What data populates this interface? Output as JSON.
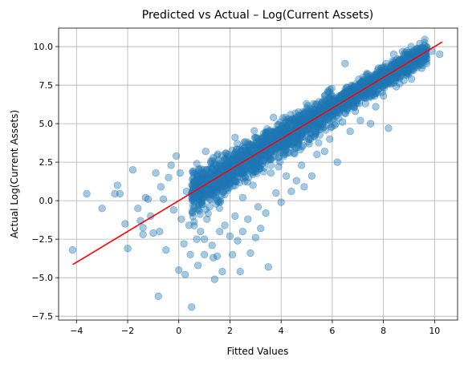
{
  "chart_data": {
    "type": "scatter",
    "title": "Predicted vs Actual – Log(Current Assets)",
    "xlabel": "Fitted Values",
    "ylabel": "Actual Log(Current Assets)",
    "xlim": [
      -4.7,
      10.9
    ],
    "ylim": [
      -7.75,
      11.2
    ],
    "x_ticks": [
      -4,
      -2,
      0,
      2,
      4,
      6,
      8,
      10
    ],
    "y_ticks": [
      -7.5,
      -5.0,
      -2.5,
      0.0,
      2.5,
      5.0,
      7.5,
      10.0
    ],
    "x_tick_labels": [
      "−4",
      "−2",
      "0",
      "2",
      "4",
      "6",
      "8",
      "10"
    ],
    "y_tick_labels": [
      "−7.5",
      "−5.0",
      "−2.5",
      "0.0",
      "2.5",
      "5.0",
      "7.5",
      "10.0"
    ],
    "grid": true,
    "point_color": "#1f77b4",
    "point_alpha": 0.4,
    "fit_line": {
      "color": "#ff0000",
      "x": [
        -4.15,
        10.3
      ],
      "y": [
        -4.15,
        10.3
      ]
    },
    "series": [
      {
        "points": [
          [
            -4.15,
            -3.2
          ],
          [
            -3.6,
            0.45
          ],
          [
            -3.0,
            -0.5
          ],
          [
            -2.5,
            0.45
          ],
          [
            -2.4,
            1.0
          ],
          [
            -2.3,
            0.45
          ],
          [
            -2.1,
            -1.5
          ],
          [
            -2.0,
            -3.1
          ],
          [
            -1.8,
            2.0
          ],
          [
            -1.6,
            -0.5
          ],
          [
            -1.5,
            -1.3
          ],
          [
            -1.4,
            -1.75
          ],
          [
            -1.4,
            -2.2
          ],
          [
            -1.3,
            0.2
          ],
          [
            -1.2,
            0.1
          ],
          [
            -1.1,
            -1.0
          ],
          [
            -1.0,
            -2.1
          ],
          [
            -0.9,
            1.8
          ],
          [
            -0.8,
            -6.2
          ],
          [
            -0.75,
            -2.0
          ],
          [
            -0.7,
            0.9
          ],
          [
            -0.6,
            0.1
          ],
          [
            -0.5,
            -3.2
          ],
          [
            -0.4,
            1.5
          ],
          [
            -0.3,
            2.3
          ],
          [
            -0.2,
            -0.6
          ],
          [
            -0.1,
            2.9
          ],
          [
            0.0,
            -4.5
          ],
          [
            0.05,
            1.8
          ],
          [
            0.1,
            -1.2
          ],
          [
            0.2,
            -2.8
          ],
          [
            0.25,
            -4.8
          ],
          [
            0.3,
            0.6
          ],
          [
            0.4,
            -1.6
          ],
          [
            0.45,
            -3.5
          ],
          [
            0.5,
            -6.9
          ],
          [
            0.55,
            1.0
          ],
          [
            0.6,
            -0.5
          ],
          [
            0.7,
            -2.5
          ],
          [
            0.75,
            -4.2
          ],
          [
            0.8,
            2.0
          ],
          [
            0.85,
            -2.0
          ],
          [
            0.9,
            -0.2
          ],
          [
            0.95,
            0.8
          ],
          [
            1.0,
            -3.5
          ],
          [
            1.0,
            -2.5
          ],
          [
            1.05,
            3.2
          ],
          [
            1.1,
            -1.2
          ],
          [
            1.15,
            1.1
          ],
          [
            1.2,
            -0.4
          ],
          [
            1.25,
            1.8
          ],
          [
            1.3,
            -2.9
          ],
          [
            1.3,
            2.6
          ],
          [
            1.35,
            -3.7
          ],
          [
            1.4,
            -5.1
          ],
          [
            1.45,
            0.4
          ],
          [
            1.5,
            -3.6
          ],
          [
            1.55,
            1.5
          ],
          [
            1.6,
            2.1
          ],
          [
            1.6,
            -2.0
          ],
          [
            1.7,
            -4.6
          ],
          [
            1.75,
            0.6
          ],
          [
            1.8,
            -1.6
          ],
          [
            1.9,
            2.4
          ],
          [
            2.0,
            -2.3
          ],
          [
            2.0,
            1.1
          ],
          [
            2.1,
            -3.5
          ],
          [
            2.2,
            4.1
          ],
          [
            2.2,
            -1.0
          ],
          [
            2.3,
            1.8
          ],
          [
            2.3,
            -2.6
          ],
          [
            2.4,
            -4.6
          ],
          [
            2.5,
            0.2
          ],
          [
            2.5,
            -2.0
          ],
          [
            2.6,
            3.3
          ],
          [
            2.7,
            -1.2
          ],
          [
            2.8,
            -3.4
          ],
          [
            2.9,
            1.0
          ],
          [
            3.0,
            -2.4
          ],
          [
            3.0,
            4.1
          ],
          [
            3.1,
            -0.4
          ],
          [
            3.2,
            -1.8
          ],
          [
            3.3,
            2.6
          ],
          [
            3.4,
            -0.8
          ],
          [
            3.5,
            -4.3
          ],
          [
            3.6,
            1.8
          ],
          [
            3.7,
            5.4
          ],
          [
            3.8,
            0.5
          ],
          [
            3.9,
            2.2
          ],
          [
            4.0,
            -0.1
          ],
          [
            4.0,
            4.3
          ],
          [
            4.2,
            1.6
          ],
          [
            4.3,
            5.3
          ],
          [
            4.4,
            0.6
          ],
          [
            4.5,
            3.1
          ],
          [
            4.6,
            1.3
          ],
          [
            4.7,
            5.5
          ],
          [
            4.8,
            2.3
          ],
          [
            4.9,
            0.9
          ],
          [
            5.0,
            4.7
          ],
          [
            5.1,
            3.7
          ],
          [
            5.2,
            1.6
          ],
          [
            5.3,
            5.9
          ],
          [
            5.4,
            3.0
          ],
          [
            5.5,
            4.6
          ],
          [
            5.6,
            6.4
          ],
          [
            5.7,
            3.2
          ],
          [
            5.8,
            5.3
          ],
          [
            5.9,
            4.0
          ],
          [
            6.0,
            6.8
          ],
          [
            6.1,
            4.9
          ],
          [
            6.2,
            2.5
          ],
          [
            6.3,
            6.4
          ],
          [
            6.4,
            5.1
          ],
          [
            6.5,
            8.9
          ],
          [
            6.6,
            6.0
          ],
          [
            6.7,
            4.5
          ],
          [
            6.8,
            7.3
          ],
          [
            6.9,
            5.8
          ],
          [
            7.0,
            6.9
          ],
          [
            7.1,
            5.2
          ],
          [
            7.2,
            7.7
          ],
          [
            7.3,
            6.3
          ],
          [
            7.4,
            8.2
          ],
          [
            7.5,
            5.0
          ],
          [
            7.6,
            7.1
          ],
          [
            7.7,
            6.1
          ],
          [
            7.8,
            8.6
          ],
          [
            7.9,
            7.6
          ],
          [
            8.0,
            6.8
          ],
          [
            8.1,
            8.9
          ],
          [
            8.2,
            4.7
          ],
          [
            8.3,
            8.1
          ],
          [
            8.4,
            9.5
          ],
          [
            8.5,
            7.4
          ],
          [
            8.6,
            8.6
          ],
          [
            8.7,
            9.1
          ],
          [
            8.8,
            7.8
          ],
          [
            8.9,
            8.4
          ],
          [
            9.0,
            9.3
          ],
          [
            9.1,
            7.9
          ],
          [
            9.2,
            8.9
          ],
          [
            9.3,
            9.6
          ],
          [
            9.5,
            8.6
          ],
          [
            9.7,
            9.2
          ],
          [
            9.9,
            9.7
          ],
          [
            10.2,
            9.5
          ]
        ]
      }
    ]
  }
}
